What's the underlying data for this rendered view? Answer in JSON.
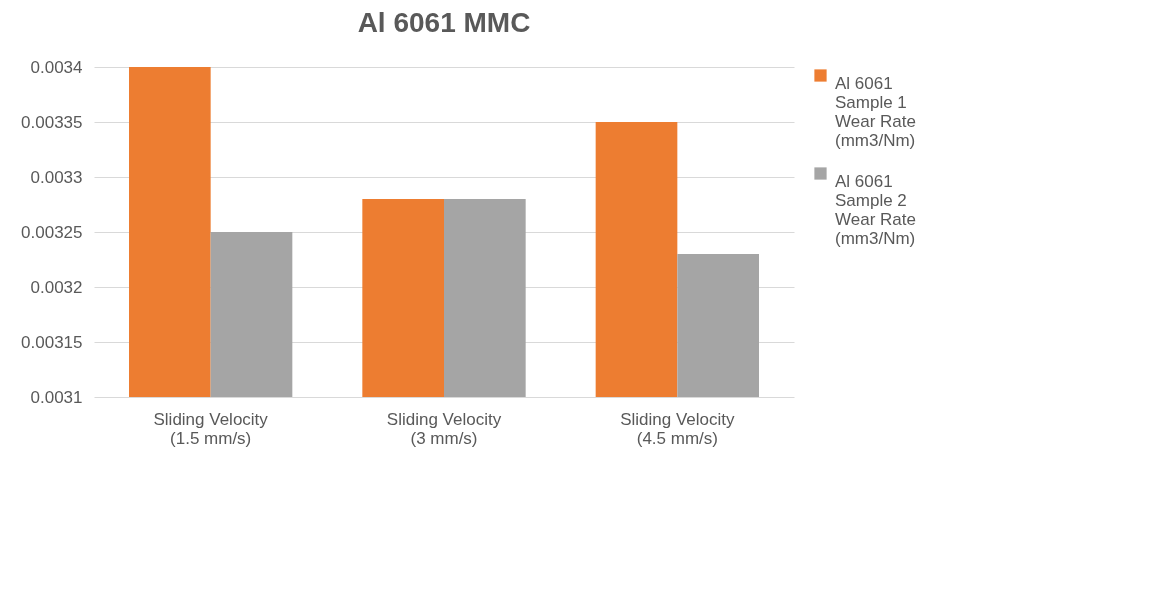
{
  "chart_data": {
    "type": "bar",
    "title": "Al 6061 MMC",
    "categories": [
      "Sliding Velocity (1.5 mm/s)",
      "Sliding Velocity (3 mm/s)",
      "Sliding Velocity (4.5 mm/s)"
    ],
    "series": [
      {
        "name": "Al 6061 Sample 1 Wear Rate (mm3/Nm)",
        "color": "#ed7d31",
        "values": [
          0.0034,
          0.00328,
          0.00335
        ]
      },
      {
        "name": "Al 6061 Sample 2 Wear Rate (mm3/Nm)",
        "color": "#a5a5a5",
        "values": [
          0.00325,
          0.00328,
          0.00323
        ]
      }
    ],
    "ylim": [
      0.0031,
      0.0034
    ],
    "yticks": [
      0.0031,
      0.00315,
      0.0032,
      0.00325,
      0.0033,
      0.00335,
      0.0034
    ],
    "grid": "y",
    "legend": "right"
  }
}
